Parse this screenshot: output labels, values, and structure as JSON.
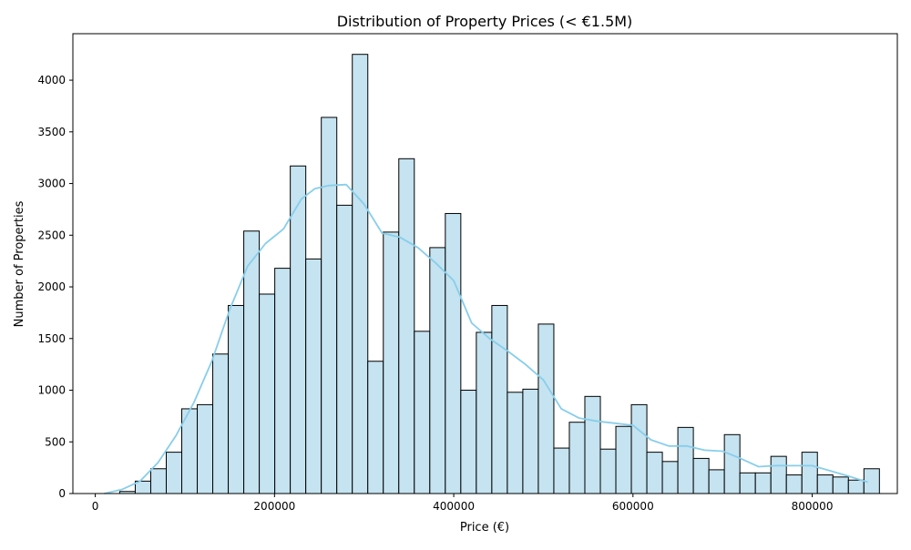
{
  "chart_data": {
    "type": "bar",
    "title": "Distribution of Property Prices (< €1.5M)",
    "xlabel": "Price (€)",
    "ylabel": "Number of Properties",
    "xlim": [
      -25000,
      895000
    ],
    "ylim": [
      0,
      4450
    ],
    "grid": false,
    "legend": "none",
    "x_ticks": [
      0,
      200000,
      400000,
      600000,
      800000
    ],
    "y_ticks": [
      0,
      500,
      1000,
      1500,
      2000,
      2500,
      3000,
      3500,
      4000
    ],
    "bar_fill": "#c5e3f0",
    "bar_edge": "#000000",
    "kde_color": "#87ceeb",
    "bins": {
      "start": 10000,
      "width": 17300,
      "counts": [
        0,
        20,
        120,
        240,
        400,
        820,
        860,
        1350,
        1820,
        2540,
        1930,
        2180,
        3170,
        2270,
        3640,
        2790,
        4250,
        1280,
        2530,
        3240,
        1570,
        2380,
        2710,
        1000,
        1560,
        1820,
        980,
        1010,
        1640,
        440,
        690,
        940,
        430,
        650,
        860,
        400,
        310,
        640,
        340,
        230,
        570,
        200,
        200,
        360,
        180,
        400,
        180,
        160,
        130,
        240
      ]
    },
    "kde": {
      "x": [
        10000,
        30000,
        50000,
        70000,
        90000,
        110000,
        130000,
        150000,
        170000,
        190000,
        210000,
        230000,
        245000,
        260000,
        280000,
        300000,
        320000,
        340000,
        360000,
        380000,
        400000,
        420000,
        440000,
        460000,
        480000,
        500000,
        520000,
        540000,
        560000,
        580000,
        600000,
        620000,
        640000,
        660000,
        680000,
        700000,
        720000,
        740000,
        760000,
        780000,
        800000,
        820000,
        840000,
        862000
      ],
      "y": [
        0,
        40,
        120,
        300,
        560,
        880,
        1280,
        1780,
        2200,
        2420,
        2560,
        2850,
        2950,
        2980,
        2990,
        2800,
        2520,
        2480,
        2380,
        2230,
        2060,
        1650,
        1500,
        1380,
        1250,
        1100,
        820,
        730,
        700,
        680,
        660,
        520,
        460,
        460,
        420,
        410,
        340,
        260,
        270,
        270,
        270,
        220,
        170,
        110
      ]
    }
  }
}
